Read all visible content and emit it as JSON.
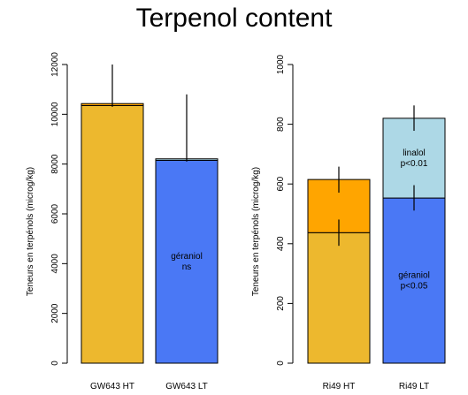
{
  "title": "Terpenol content",
  "chart_data": [
    {
      "type": "bar",
      "ylabel": "Teneurs en terpénols (microg/kg)",
      "ylim": [
        0,
        12000
      ],
      "yticks": [
        0,
        2000,
        4000,
        6000,
        8000,
        10000,
        12000
      ],
      "tick_labels": [
        "0",
        "2000",
        "4000",
        "6000",
        "8000",
        "10000",
        "12000"
      ],
      "categories": [
        "GW643 HT",
        "GW643 LT"
      ],
      "bars": [
        {
          "category": "GW643 HT",
          "segments": [
            {
              "value": 10350,
              "color": "#EDB82E",
              "label_lines": []
            },
            {
              "value": 80,
              "color": "#FFA500",
              "label_lines": []
            }
          ],
          "error": {
            "center": 10430,
            "low": 10300,
            "high": 12000
          }
        },
        {
          "category": "GW643 LT",
          "segments": [
            {
              "value": 8150,
              "color": "#4A78F5",
              "label_lines": [
                "géraniol",
                "ns"
              ]
            },
            {
              "value": 60,
              "color": "#ADD8E6",
              "label_lines": []
            }
          ],
          "error": {
            "center": 8200,
            "low": 8100,
            "high": 10800
          }
        }
      ]
    },
    {
      "type": "bar",
      "ylabel": "Teneurs en terpénols (microg/kg)",
      "ylim": [
        0,
        1000
      ],
      "yticks": [
        0,
        200,
        400,
        600,
        800,
        1000
      ],
      "tick_labels": [
        "0",
        "200",
        "400",
        "600",
        "800",
        "1000"
      ],
      "categories": [
        "Ri49 HT",
        "Ri49 LT"
      ],
      "bars": [
        {
          "category": "Ri49 HT",
          "segments": [
            {
              "value": 437,
              "color": "#EDB82E",
              "label_lines": []
            },
            {
              "value": 178,
              "color": "#FFA500",
              "label_lines": []
            }
          ],
          "errors": [
            {
              "center": 437,
              "low": 393,
              "high": 481
            },
            {
              "center": 615,
              "low": 571,
              "high": 658
            }
          ]
        },
        {
          "category": "Ri49 LT",
          "segments": [
            {
              "value": 553,
              "color": "#4A78F5",
              "label_lines": [
                "géraniol",
                "p<0.05"
              ]
            },
            {
              "value": 267,
              "color": "#ADD8E6",
              "label_lines": [
                "linalol",
                "p<0.01"
              ]
            }
          ],
          "errors": [
            {
              "center": 553,
              "low": 511,
              "high": 596
            },
            {
              "center": 820,
              "low": 778,
              "high": 863
            }
          ]
        }
      ]
    }
  ]
}
